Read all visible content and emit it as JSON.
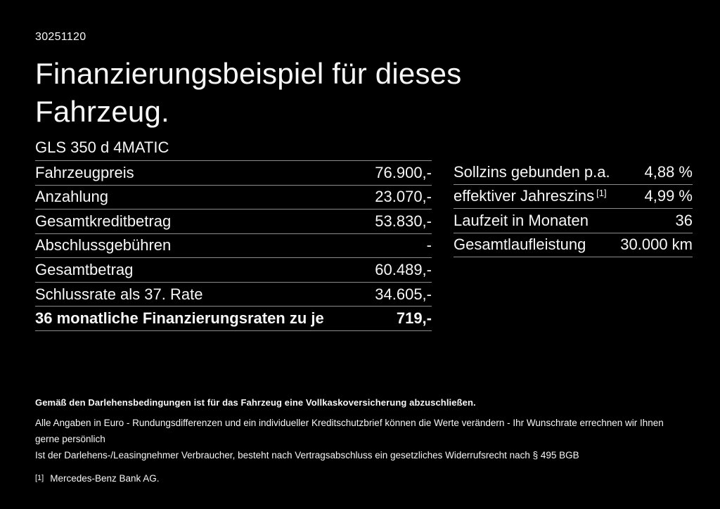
{
  "page": {
    "doc_id": "30251120",
    "title_line1": "Finanzierungsbeispiel für dieses",
    "title_line2": "Fahrzeug.",
    "vehicle_model": "GLS 350 d 4MATIC"
  },
  "finance_table": {
    "rows": [
      {
        "label": "Fahrzeugpreis",
        "value": "76.900,-"
      },
      {
        "label": "Anzahlung",
        "value": "23.070,-"
      },
      {
        "label": "Gesamtkreditbetrag",
        "value": "53.830,-"
      },
      {
        "label": "Abschlussgebühren",
        "value": "-"
      },
      {
        "label": "Gesamtbetrag",
        "value": "60.489,-"
      },
      {
        "label": "Schlussrate als 37. Rate",
        "value": "34.605,-"
      },
      {
        "label": "36 monatliche Finanzierungsraten zu je",
        "value": "719,-"
      }
    ]
  },
  "conditions_table": {
    "rows": [
      {
        "label": "Sollzins gebunden p.a.",
        "value": "4,88 %"
      },
      {
        "label": "effektiver Jahreszins",
        "label_sup": "[1]",
        "value": "4,99 %"
      },
      {
        "label": "Laufzeit in Monaten",
        "value": "36"
      },
      {
        "label": "Gesamtlaufleistung",
        "value": "30.000 km"
      }
    ]
  },
  "footer": {
    "bold_note": "Gemäß den Darlehensbedingungen ist für das Fahrzeug eine Vollkaskoversicherung abzuschließen.",
    "note_line1": "Alle Angaben in Euro - Rundungsdifferenzen und ein individueller Kreditschutzbrief können die Werte verändern - Ihr Wunschrate errechnen wir Ihnen gerne persönlich",
    "note_line2": "Ist der Darlehens-/Leasingnehmer Verbraucher, besteht nach Vertragsabschluss ein gesetzliches Widerrufsrecht nach § 495 BGB",
    "footnote_marker": "[1]",
    "footnote_text": "Mercedes-Benz Bank AG."
  },
  "colors": {
    "background": "#000000",
    "text": "#f7f7f7",
    "divider": "#8c8c8c"
  }
}
